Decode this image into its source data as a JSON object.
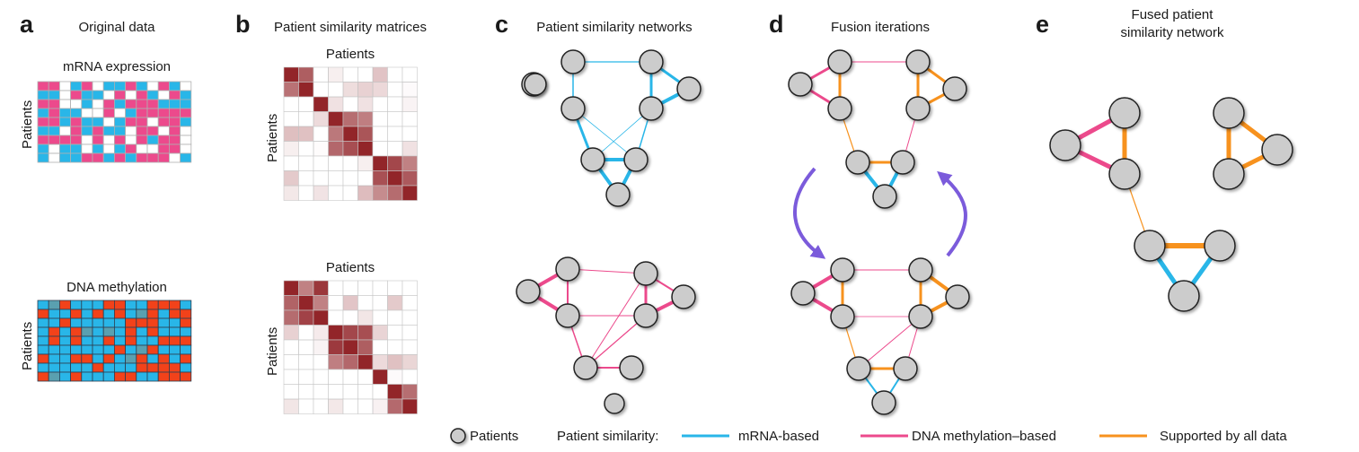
{
  "panels": {
    "a": {
      "letter": "a",
      "title": "Original data",
      "top_label": "mRNA expression",
      "bottom_label": "DNA methylation",
      "axis_label": "Patients"
    },
    "b": {
      "letter": "b",
      "title": "Patient similarity matrices",
      "axis_label": "Patients"
    },
    "c": {
      "letter": "c",
      "title": "Patient similarity networks"
    },
    "d": {
      "letter": "d",
      "title": "Fusion iterations"
    },
    "e": {
      "letter": "e",
      "title_line1": "Fused patient",
      "title_line2": "similarity network"
    }
  },
  "legend": {
    "patients": "Patients",
    "similarity": "Patient similarity:",
    "mrna": "mRNA-based",
    "dna": "DNA methylation–based",
    "all": "Supported by all data"
  },
  "colors": {
    "mrna": "#29b6e8",
    "dna": "#ec4a8c",
    "all": "#f7921e",
    "node": "#cccccc",
    "methyl_red": "#f2421a",
    "arrow": "#7b5bdb"
  }
}
